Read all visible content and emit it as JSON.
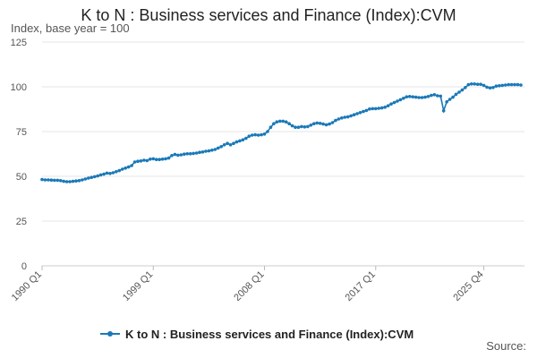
{
  "chart_data": {
    "type": "line",
    "title": "K to N : Business services and Finance (Index):CVM",
    "subtitle": "Index, base year = 100",
    "source_label": "Source:",
    "xlabel": "",
    "ylabel": "Index, base year = 100",
    "ylim": [
      0,
      125
    ],
    "yticks": [
      0,
      25,
      50,
      75,
      100,
      125
    ],
    "xticks": [
      "1990 Q1",
      "1999 Q1",
      "2008 Q1",
      "2017 Q1",
      "2025 Q4"
    ],
    "grid": true,
    "legend_position": "bottom",
    "color": "#1a79b8",
    "series": [
      {
        "name": "K to N : Business services and Finance (Index):CVM",
        "start": "1990 Q1",
        "frequency": "quarterly",
        "values": [
          48.2,
          48.0,
          48.0,
          47.9,
          47.8,
          47.8,
          47.6,
          47.2,
          47.0,
          47.0,
          47.2,
          47.4,
          47.6,
          48.0,
          48.5,
          49.0,
          49.4,
          49.8,
          50.2,
          50.8,
          51.2,
          51.8,
          51.6,
          52.0,
          52.6,
          53.2,
          54.0,
          54.6,
          55.2,
          56.0,
          58.0,
          58.4,
          58.6,
          59.0,
          58.8,
          59.6,
          59.8,
          59.4,
          59.4,
          59.6,
          59.8,
          60.2,
          61.6,
          62.2,
          61.8,
          62.0,
          62.4,
          62.6,
          62.6,
          62.8,
          63.0,
          63.4,
          63.6,
          64.0,
          64.2,
          64.6,
          65.0,
          65.8,
          66.6,
          67.6,
          68.4,
          67.6,
          68.4,
          69.2,
          69.8,
          70.4,
          71.2,
          72.4,
          73.0,
          73.2,
          73.0,
          73.2,
          73.6,
          75.0,
          77.4,
          79.4,
          80.4,
          80.8,
          80.8,
          80.4,
          79.4,
          78.2,
          77.4,
          77.4,
          77.8,
          77.6,
          77.8,
          78.6,
          79.4,
          79.8,
          79.6,
          79.2,
          78.8,
          79.2,
          80.0,
          81.2,
          82.0,
          82.6,
          83.0,
          83.2,
          83.8,
          84.4,
          85.0,
          85.6,
          86.2,
          86.8,
          87.6,
          87.8,
          87.8,
          88.0,
          88.2,
          88.6,
          89.4,
          90.4,
          91.2,
          92.0,
          92.8,
          93.6,
          94.4,
          94.6,
          94.4,
          94.2,
          94.0,
          94.0,
          94.2,
          94.6,
          95.2,
          95.6,
          95.0,
          94.8,
          86.6,
          91.6,
          93.0,
          94.2,
          95.8,
          97.0,
          98.2,
          99.6,
          101.2,
          101.6,
          101.6,
          101.4,
          101.4,
          100.8,
          99.8,
          99.4,
          99.6,
          100.4,
          100.6,
          100.8,
          101.0,
          101.2,
          101.2,
          101.2,
          101.2,
          101.0
        ]
      }
    ]
  }
}
